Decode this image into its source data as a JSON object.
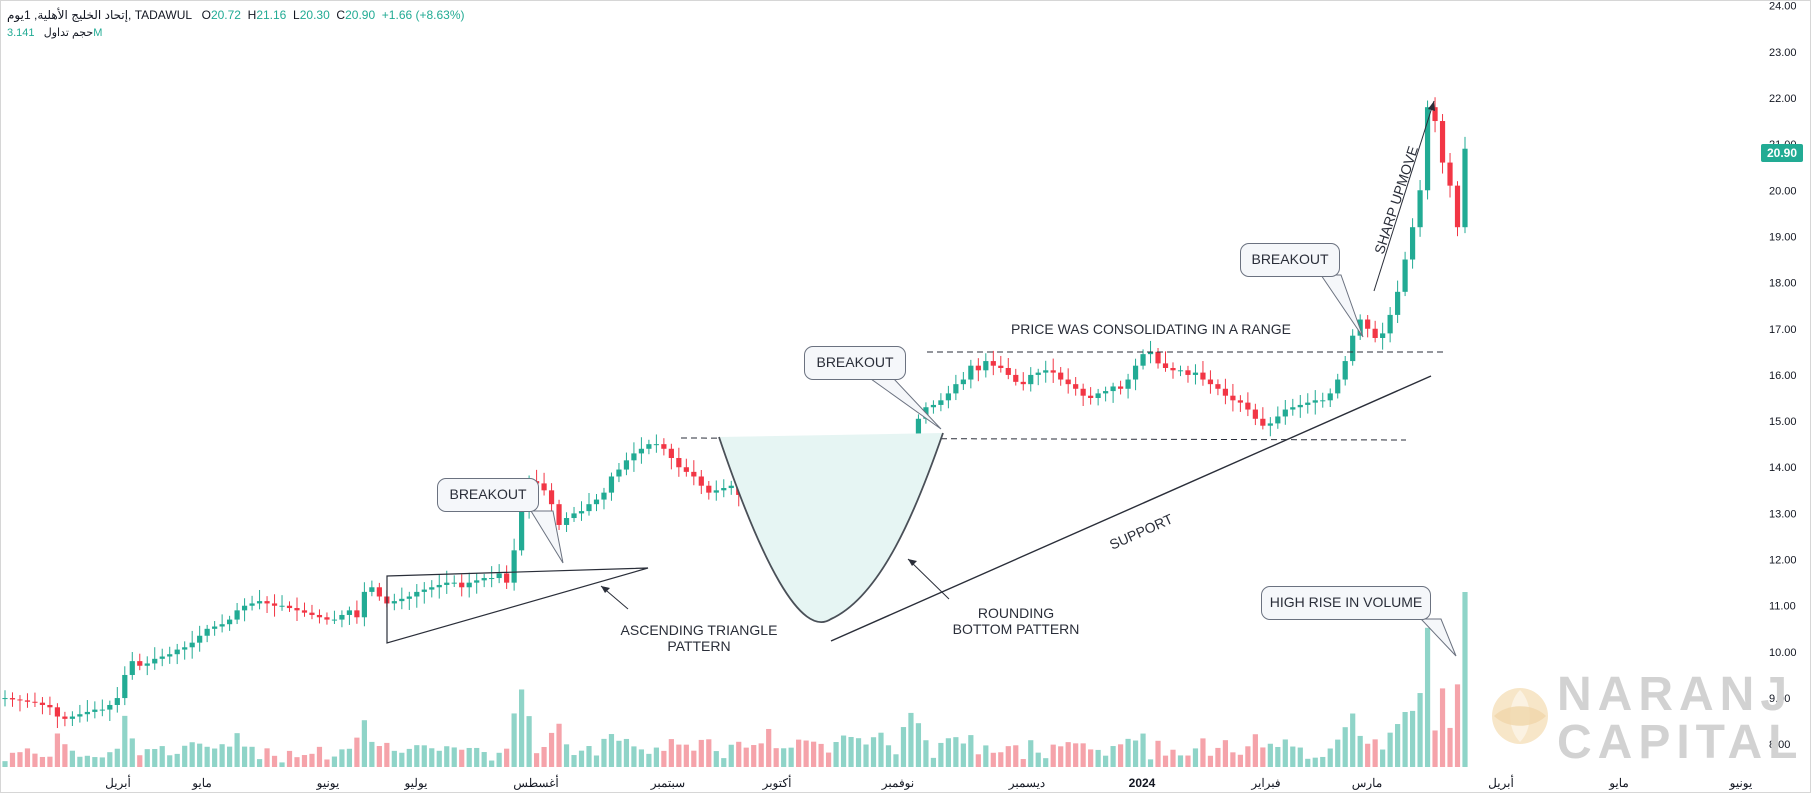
{
  "header": {
    "symbol_line": "إتحاد الخليج الأهلية, 1يوم, TADAWUL",
    "open_label": "O",
    "open": "20.72",
    "high_label": "H",
    "high": "21.16",
    "low_label": "L",
    "low": "20.30",
    "close_label": "C",
    "close": "20.90",
    "change": "+1.66 (+8.63%)",
    "volume_label": "حجم تداول",
    "volume": "3.141M"
  },
  "price_tag": "20.90",
  "annotations": {
    "breakout_1": "BREAKOUT",
    "breakout_2": "BREAKOUT",
    "breakout_3": "BREAKOUT",
    "ascending_triangle": "ASCENDING TRIANGLE\nPATTERN",
    "rounding_bottom": "ROUNDING\nBOTTOM PATTERN",
    "consolidating": "PRICE WAS CONSOLIDATING IN A RANGE",
    "support": "SUPPORT",
    "sharp_upmove": "SHARP UPMOVE",
    "volume_rise": "HIGH RISE IN VOLUME"
  },
  "watermark": {
    "line1": "NARANJ",
    "line2": "CAPITAL"
  },
  "colors": {
    "up": "#22ab94",
    "down": "#f23645",
    "vol_up": "#8fd4c8",
    "vol_down": "#f5a3aa",
    "annotation": "#2a2e39"
  },
  "chart_data": {
    "type": "candlestick",
    "timeframe": "1D",
    "yaxis": {
      "ticks": [
        "8.00",
        "9.00",
        "10.00",
        "11.00",
        "12.00",
        "13.00",
        "14.00",
        "15.00",
        "16.00",
        "17.00",
        "18.00",
        "19.00",
        "20.00",
        "21.00",
        "22.00",
        "23.00",
        "24.00"
      ],
      "ylim": [
        7.55,
        24.1
      ]
    },
    "xaxis": {
      "ticks": [
        "أبريل",
        "مايو",
        "يونيو",
        "يوليو",
        "أغسطس",
        "سبتمبر",
        "أكتوبر",
        "نوفمبر",
        "ديسمبر",
        "2024",
        "فبراير",
        "مارس",
        "أبريل",
        "مايو",
        "يونيو"
      ]
    },
    "close_series": [
      9.0,
      8.97,
      8.95,
      8.92,
      8.9,
      8.85,
      8.8,
      8.6,
      8.55,
      8.6,
      8.65,
      8.7,
      8.75,
      8.75,
      8.85,
      9.0,
      9.5,
      9.8,
      9.7,
      9.75,
      9.85,
      9.9,
      9.95,
      10.05,
      10.1,
      10.2,
      10.35,
      10.5,
      10.55,
      10.6,
      10.7,
      10.9,
      11.0,
      11.05,
      11.1,
      11.05,
      11.0,
      11.0,
      10.95,
      10.9,
      10.85,
      10.8,
      10.75,
      10.7,
      10.7,
      10.8,
      10.9,
      10.75,
      11.3,
      11.4,
      11.2,
      11.05,
      11.1,
      11.15,
      11.2,
      11.3,
      11.35,
      11.4,
      11.45,
      11.5,
      11.5,
      11.4,
      11.5,
      11.55,
      11.6,
      11.6,
      11.7,
      11.5,
      12.2,
      13.1,
      13.7,
      13.65,
      13.5,
      13.2,
      12.75,
      12.9,
      13.0,
      13.05,
      13.2,
      13.3,
      13.45,
      13.8,
      13.95,
      14.15,
      14.3,
      14.4,
      14.5,
      14.5,
      14.4,
      14.2,
      14.0,
      13.9,
      13.8,
      13.6,
      13.45,
      13.5,
      13.55,
      13.6,
      13.4,
      13.2,
      13.0,
      12.8,
      12.5,
      12.3,
      12.4,
      12.5,
      12.3,
      12.0,
      11.8,
      11.55,
      11.5,
      11.6,
      11.8,
      12.0,
      12.35,
      12.6,
      12.9,
      13.3,
      13.55,
      13.6,
      14.0,
      14.5,
      15.05,
      15.3,
      15.35,
      15.45,
      15.6,
      15.8,
      15.9,
      16.2,
      16.1,
      16.3,
      16.2,
      16.15,
      16.0,
      15.85,
      15.8,
      16.0,
      16.05,
      16.1,
      16.05,
      15.9,
      15.8,
      15.7,
      15.55,
      15.5,
      15.6,
      15.65,
      15.75,
      15.7,
      15.9,
      16.2,
      16.45,
      16.5,
      16.25,
      16.15,
      16.1,
      16.1,
      16.0,
      16.05,
      15.9,
      15.8,
      15.7,
      15.55,
      15.45,
      15.4,
      15.25,
      15.05,
      14.9,
      14.95,
      15.1,
      15.25,
      15.3,
      15.35,
      15.4,
      15.45,
      15.45,
      15.6,
      15.9,
      16.3,
      16.85,
      17.2,
      17.0,
      16.8,
      16.9,
      17.3,
      17.8,
      18.5,
      19.2,
      20.0,
      21.8,
      21.5,
      20.6,
      20.1,
      19.2,
      20.9
    ]
  }
}
